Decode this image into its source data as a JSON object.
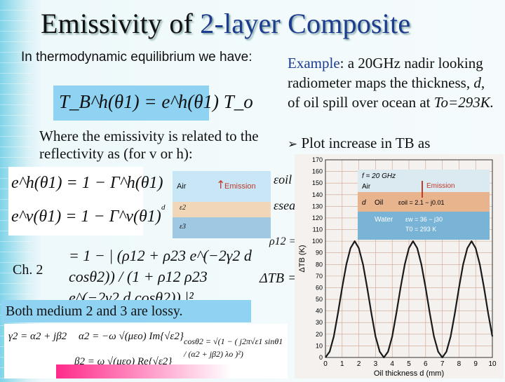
{
  "title": {
    "part1": "Emissivity of ",
    "part2": "2-layer Composite"
  },
  "left": {
    "intro": "In thermodynamic equilibrium we have:",
    "eq_main": "T_B^h(θ1) = e^h(θ1) T_o",
    "reflect_text": "Where the emissivity is related to the reflectivity as (for v or h):",
    "eq_h": "e^h(θ1) = 1 − Γ^h(θ1)",
    "eq_v": "e^v(θ1) = 1 − Γ^v(θ1)",
    "ch_label": "Ch. 2",
    "eq_gamma": "= 1 − | (ρ12 + ρ23 e^(−2γ2 d cosθ2)) / (1 + ρ12 ρ23 e^(−2γ2 d cosθ2)) |²",
    "lossy": "Both medium 2 and 3 are lossy.",
    "eq_gamma2": "γ2 = α2 + jβ2",
    "eq_alpha2": "α2 = −ω √(μεo) Im{√ε2}",
    "eq_beta2": "β2 = ω √(μεo) Re{√ε2}",
    "eq_cos": "cosθ2 = √(1 − ( j2π√ε1 sinθ1 / (α2 + jβ2) λo )²)"
  },
  "layers_fig": {
    "air": "Air",
    "emission": "Emission",
    "d": "d",
    "eps2": "ε2",
    "eps3": "ε3"
  },
  "right": {
    "example_label": "Example",
    "example_text": ": a 20GHz nadir looking radiometer maps the thickness, ",
    "d_var": "d",
    "example_text2": ", of oil spill over ocean at ",
    "To": "To=293K.",
    "bullet": "Plot increase in TB as",
    "eps_oil": "εoil =",
    "eps_sea": "εsea =",
    "rho12": "ρ12 =",
    "deltaTB": "ΔTB ="
  },
  "chart_data": {
    "type": "line",
    "xlabel": "Oil thickness d (mm)",
    "ylabel": "ΔTB (K)",
    "xlim": [
      0,
      10
    ],
    "ylim": [
      0,
      170
    ],
    "x_ticks": [
      "0",
      "1",
      "2",
      "3",
      "4",
      "5",
      "6",
      "7",
      "8",
      "9",
      "10"
    ],
    "y_ticks": [
      "0",
      "10",
      "20",
      "30",
      "40",
      "50",
      "60",
      "70",
      "80",
      "90",
      "100",
      "110",
      "120",
      "130",
      "140",
      "150",
      "160",
      "170"
    ],
    "grid": true,
    "legend": {
      "f": "f = 20 GHz",
      "air": "Air",
      "emission": "Emission",
      "oil": "Oil",
      "eps_oil": "εoil = 2.1 − j0.01",
      "water": "Water",
      "eps_w": "εw = 36 − j30",
      "T0": "T0 = 293 K",
      "d": "d"
    },
    "series": [
      {
        "x": [
          0,
          0.25,
          0.5,
          0.75,
          1,
          1.25,
          1.5,
          1.75,
          2,
          2.25,
          2.5,
          2.75,
          3,
          3.25,
          3.5,
          3.75,
          4,
          4.25,
          4.5,
          4.75,
          5,
          5.25,
          5.5,
          5.75,
          6,
          6.25,
          6.5,
          6.75,
          7,
          7.25,
          7.5,
          7.75,
          8,
          8.25,
          8.5,
          8.75,
          9,
          9.25,
          9.5,
          9.75,
          10
        ],
        "y": [
          0,
          5,
          18,
          38,
          60,
          80,
          94,
          100,
          94,
          80,
          60,
          38,
          18,
          5,
          0,
          5,
          18,
          38,
          60,
          80,
          94,
          100,
          94,
          80,
          60,
          38,
          18,
          5,
          0,
          5,
          18,
          38,
          60,
          80,
          94,
          100,
          94,
          80,
          60,
          38,
          18
        ]
      }
    ]
  },
  "colors": {
    "title_accent": "#1d3b8f",
    "curve": "#1a1a1a",
    "grid": "#c9a58f",
    "emission": "#c0392b"
  }
}
